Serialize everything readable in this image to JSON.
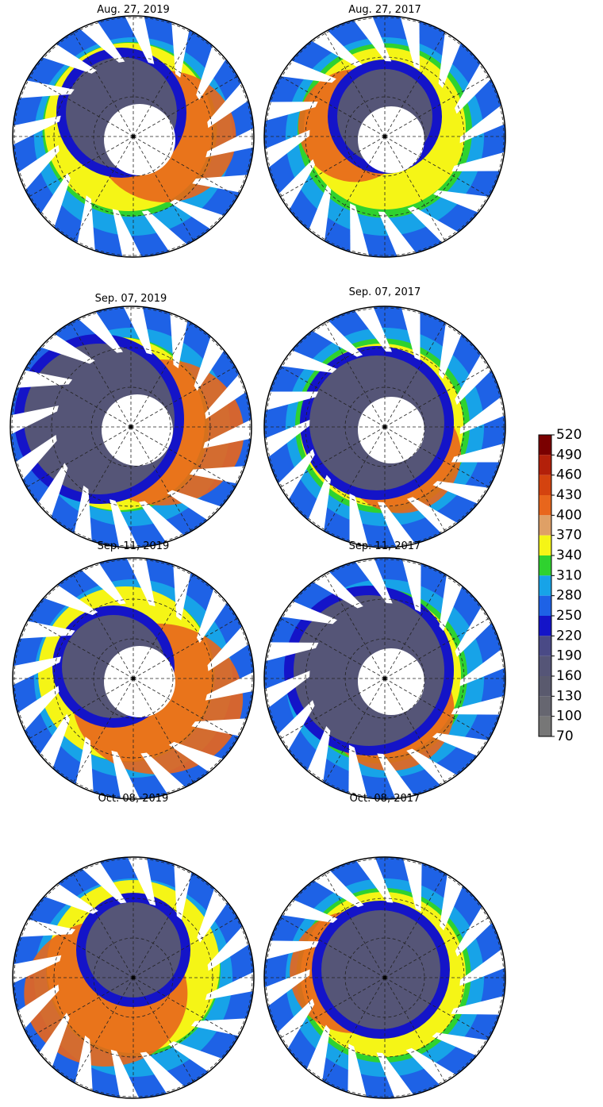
{
  "panels": [
    {
      "title": "Aug. 27, 2019"
    },
    {
      "title": "Aug. 27, 2017"
    },
    {
      "title": "Sep. 07, 2019"
    },
    {
      "title": "Sep. 07, 2017"
    },
    {
      "title": "Sep. 11, 2019"
    },
    {
      "title": "Sep. 11, 2017"
    },
    {
      "title": "Oct. 08, 2019"
    },
    {
      "title": "Oct. 08, 2017"
    }
  ],
  "colorbar": {
    "ticks": [
      520,
      490,
      460,
      430,
      400,
      370,
      340,
      310,
      280,
      250,
      220,
      190,
      160,
      130,
      100,
      70
    ],
    "colors": [
      "#7a0000",
      "#b3200a",
      "#d4430f",
      "#e8661c",
      "#dfa066",
      "#f5f516",
      "#2fd22f",
      "#17a3e8",
      "#1e62e6",
      "#1414c8",
      "#4a4a86",
      "#555577",
      "#5a5a6e",
      "#666670",
      "#777777"
    ]
  }
}
